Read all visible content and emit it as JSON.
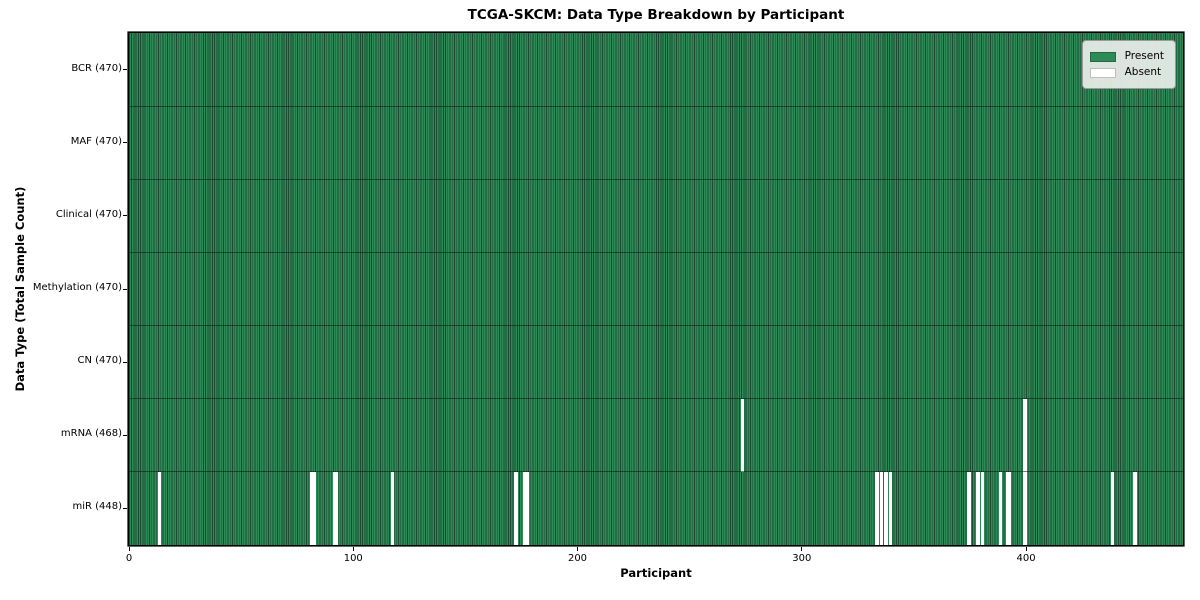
{
  "chart_data": {
    "type": "heatmap",
    "title": "TCGA-SKCM: Data Type Breakdown by Participant",
    "xlabel": "Participant",
    "ylabel": "Data Type (Total Sample Count)",
    "x_ticks": [
      0,
      100,
      200,
      300,
      400
    ],
    "x_range": [
      0,
      470
    ],
    "n_participants": 470,
    "grid": false,
    "legend_position": "upper right",
    "legend_items": [
      {
        "label": "Present",
        "color": "#2E8B57"
      },
      {
        "label": "Absent",
        "color": "#FFFFFF"
      }
    ],
    "colors": {
      "present": "#2E8B57",
      "absent": "#FFFFFF",
      "cell_edge": "rgba(0,0,0,0.45)",
      "row_separator": "rgba(5,25,15,0.55)"
    },
    "rows": [
      {
        "data_type": "BCR",
        "label": "BCR (470)",
        "present_count": 470,
        "absent_participants": []
      },
      {
        "data_type": "MAF",
        "label": "MAF (470)",
        "present_count": 470,
        "absent_participants": []
      },
      {
        "data_type": "Clinical",
        "label": "Clinical (470)",
        "present_count": 470,
        "absent_participants": []
      },
      {
        "data_type": "Methylation",
        "label": "Methylation (470)",
        "present_count": 470,
        "absent_participants": []
      },
      {
        "data_type": "CN",
        "label": "CN (470)",
        "present_count": 470,
        "absent_participants": []
      },
      {
        "data_type": "mRNA",
        "label": "mRNA (468)",
        "present_count": 468,
        "absent_participants": [
          273,
          399
        ]
      },
      {
        "data_type": "miR",
        "label": "miR (448)",
        "present_count": 448,
        "absent_participants": [
          13,
          81,
          82,
          91,
          92,
          117,
          172,
          176,
          177,
          333,
          335,
          337,
          339,
          374,
          378,
          380,
          388,
          391,
          392,
          399,
          438,
          448
        ]
      }
    ]
  }
}
